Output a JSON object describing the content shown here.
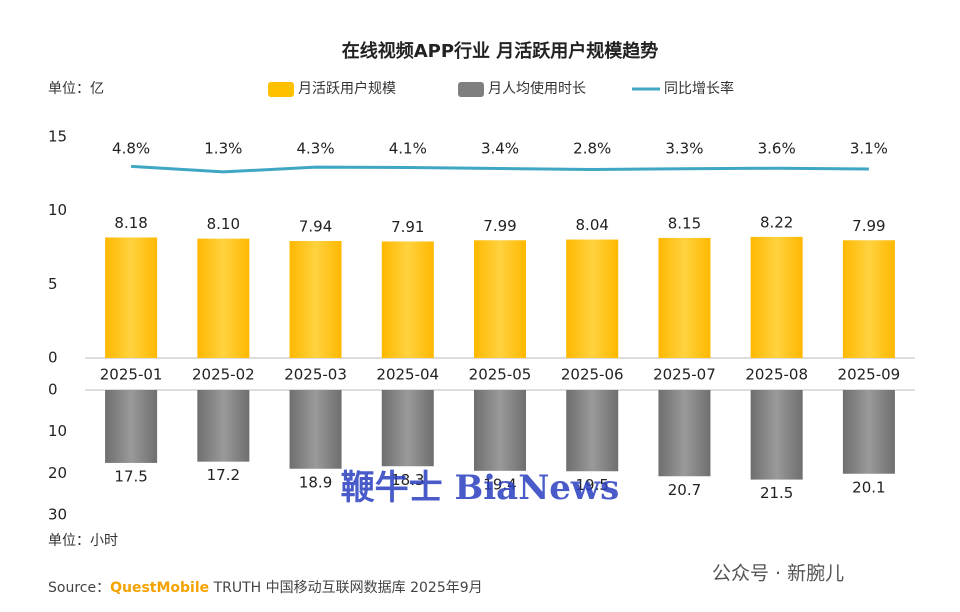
{
  "chart_data": [
    {
      "type": "bar",
      "title": "在线视频APP行业 月活跃用户规模趋势",
      "unit_label": "单位：亿",
      "categories": [
        "2025-01",
        "2025-02",
        "2025-03",
        "2025-04",
        "2025-05",
        "2025-06",
        "2025-07",
        "2025-08",
        "2025-09"
      ],
      "series": [
        {
          "name": "月活跃用户规模",
          "color": "#ffc000",
          "values": [
            8.18,
            8.1,
            7.94,
            7.91,
            7.99,
            8.04,
            8.15,
            8.22,
            7.99
          ],
          "value_labels": [
            "8.18",
            "8.10",
            "7.94",
            "7.91",
            "7.99",
            "8.04",
            "8.15",
            "8.22",
            "7.99"
          ]
        },
        {
          "name": "同比增长率",
          "color": "#3fa6c4",
          "type": "line",
          "values": [
            4.8,
            1.3,
            4.3,
            4.1,
            3.4,
            2.8,
            3.3,
            3.6,
            3.1
          ],
          "value_labels": [
            "4.8%",
            "1.3%",
            "4.3%",
            "4.1%",
            "3.4%",
            "2.8%",
            "3.3%",
            "3.6%",
            "3.1%"
          ]
        }
      ],
      "ylim": [
        0,
        15
      ],
      "yticks": [
        0,
        5,
        10,
        15
      ]
    },
    {
      "type": "bar",
      "unit_label": "单位：小时",
      "inverted": true,
      "series": [
        {
          "name": "月人均使用时长",
          "color": "#7f7f7f",
          "values": [
            17.5,
            17.2,
            18.9,
            18.3,
            19.4,
            19.5,
            20.7,
            21.5,
            20.1
          ]
        }
      ],
      "ylim": [
        0,
        30
      ],
      "yticks": [
        0,
        10,
        20,
        30
      ]
    }
  ],
  "source": {
    "prefix": "Source：",
    "brand": "QuestMobile",
    "rest": " TRUTH 中国移动互联网数据库 2025年9月"
  },
  "watermarks": {
    "overlay": "鞭牛士 BiaNews",
    "account": "公众号 · 新腕儿"
  }
}
